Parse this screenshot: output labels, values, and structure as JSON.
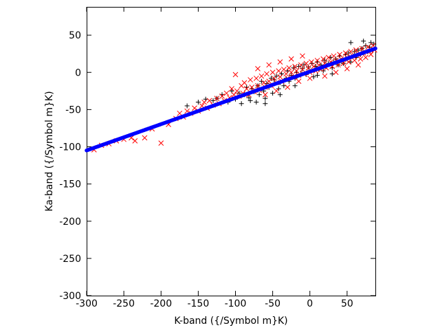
{
  "chart_data": {
    "type": "scatter",
    "title": "",
    "xlabel": "K-band ({/Symbol m}K)",
    "ylabel": "Ka-band ({/Symbol m}K)",
    "xlim": [
      -300,
      88
    ],
    "ylim": [
      -300,
      88
    ],
    "xticks": [
      -300,
      -250,
      -200,
      -150,
      -100,
      -50,
      0,
      50
    ],
    "yticks": [
      -300,
      -250,
      -200,
      -150,
      -100,
      -50,
      0,
      50
    ],
    "grid": false,
    "legend": "none",
    "series": [
      {
        "marker": "plus",
        "color": "#000000",
        "points": [
          [
            -165,
            -45
          ],
          [
            -150,
            -40
          ],
          [
            -140,
            -36
          ],
          [
            -130,
            -38
          ],
          [
            -125,
            -35
          ],
          [
            -118,
            -30
          ],
          [
            -110,
            -40
          ],
          [
            -105,
            -25
          ],
          [
            -100,
            -36
          ],
          [
            -95,
            -28
          ],
          [
            -92,
            -42
          ],
          [
            -88,
            -30
          ],
          [
            -85,
            -20
          ],
          [
            -82,
            -34
          ],
          [
            -80,
            -38
          ],
          [
            -78,
            -22
          ],
          [
            -75,
            -26
          ],
          [
            -72,
            -40
          ],
          [
            -70,
            -18
          ],
          [
            -68,
            -30
          ],
          [
            -65,
            -12
          ],
          [
            -62,
            -25
          ],
          [
            -60,
            -35
          ],
          [
            -58,
            -15
          ],
          [
            -55,
            -20
          ],
          [
            -52,
            -8
          ],
          [
            -50,
            -28
          ],
          [
            -48,
            -10
          ],
          [
            -45,
            -5
          ],
          [
            -42,
            -22
          ],
          [
            -40,
            -14
          ],
          [
            -38,
            -2
          ],
          [
            -35,
            -18
          ],
          [
            -32,
            -8
          ],
          [
            -30,
            2
          ],
          [
            -28,
            -12
          ],
          [
            -25,
            -4
          ],
          [
            -22,
            6
          ],
          [
            -20,
            -8
          ],
          [
            -18,
            0
          ],
          [
            -15,
            8
          ],
          [
            -12,
            -2
          ],
          [
            -10,
            5
          ],
          [
            -8,
            10
          ],
          [
            -5,
            -3
          ],
          [
            -2,
            7
          ],
          [
            0,
            2
          ],
          [
            3,
            12
          ],
          [
            5,
            -6
          ],
          [
            8,
            8
          ],
          [
            10,
            14
          ],
          [
            12,
            4
          ],
          [
            15,
            10
          ],
          [
            18,
            2
          ],
          [
            20,
            16
          ],
          [
            22,
            8
          ],
          [
            25,
            12
          ],
          [
            28,
            20
          ],
          [
            30,
            6
          ],
          [
            32,
            14
          ],
          [
            35,
            18
          ],
          [
            38,
            10
          ],
          [
            40,
            22
          ],
          [
            42,
            16
          ],
          [
            45,
            12
          ],
          [
            48,
            24
          ],
          [
            50,
            18
          ],
          [
            52,
            26
          ],
          [
            55,
            14
          ],
          [
            58,
            22
          ],
          [
            60,
            28
          ],
          [
            62,
            20
          ],
          [
            65,
            30
          ],
          [
            68,
            24
          ],
          [
            70,
            32
          ],
          [
            72,
            26
          ],
          [
            75,
            36
          ],
          [
            78,
            28
          ],
          [
            80,
            34
          ],
          [
            82,
            40
          ],
          [
            84,
            30
          ],
          [
            86,
            38
          ],
          [
            55,
            40
          ],
          [
            72,
            42
          ],
          [
            -60,
            -42
          ],
          [
            -40,
            -30
          ],
          [
            -20,
            -18
          ],
          [
            10,
            -4
          ],
          [
            30,
            -2
          ]
        ]
      },
      {
        "marker": "x",
        "color": "#ff0000",
        "points": [
          [
            -290,
            -104
          ],
          [
            -280,
            -98
          ],
          [
            -270,
            -96
          ],
          [
            -260,
            -92
          ],
          [
            -250,
            -90
          ],
          [
            -240,
            -88
          ],
          [
            -235,
            -92
          ],
          [
            -222,
            -88
          ],
          [
            -212,
            -76
          ],
          [
            -200,
            -95
          ],
          [
            -190,
            -70
          ],
          [
            -180,
            -62
          ],
          [
            -175,
            -55
          ],
          [
            -170,
            -60
          ],
          [
            -165,
            -52
          ],
          [
            -160,
            -55
          ],
          [
            -155,
            -48
          ],
          [
            -150,
            -52
          ],
          [
            -145,
            -45
          ],
          [
            -142,
            -40
          ],
          [
            -138,
            -48
          ],
          [
            -135,
            -38
          ],
          [
            -130,
            -44
          ],
          [
            -125,
            -35
          ],
          [
            -122,
            -42
          ],
          [
            -118,
            -32
          ],
          [
            -115,
            -38
          ],
          [
            -112,
            -28
          ],
          [
            -108,
            -34
          ],
          [
            -105,
            -22
          ],
          [
            -102,
            -30
          ],
          [
            -100,
            -3
          ],
          [
            -98,
            -25
          ],
          [
            -95,
            -32
          ],
          [
            -92,
            -18
          ],
          [
            -90,
            -28
          ],
          [
            -88,
            -14
          ],
          [
            -85,
            -22
          ],
          [
            -82,
            -30
          ],
          [
            -80,
            -10
          ],
          [
            -78,
            -20
          ],
          [
            -75,
            -26
          ],
          [
            -72,
            -8
          ],
          [
            -70,
            -18
          ],
          [
            -68,
            -24
          ],
          [
            -65,
            -5
          ],
          [
            -62,
            -14
          ],
          [
            -60,
            -20
          ],
          [
            -58,
            -2
          ],
          [
            -55,
            -12
          ],
          [
            -52,
            -18
          ],
          [
            -50,
            0
          ],
          [
            -48,
            -8
          ],
          [
            -45,
            -14
          ],
          [
            -42,
            2
          ],
          [
            -40,
            -6
          ],
          [
            -38,
            -12
          ],
          [
            -35,
            4
          ],
          [
            -32,
            -2
          ],
          [
            -30,
            -8
          ],
          [
            -28,
            6
          ],
          [
            -25,
            0
          ],
          [
            -22,
            -6
          ],
          [
            -20,
            8
          ],
          [
            -18,
            2
          ],
          [
            -15,
            -4
          ],
          [
            -12,
            10
          ],
          [
            -10,
            4
          ],
          [
            -8,
            -2
          ],
          [
            -5,
            12
          ],
          [
            -2,
            6
          ],
          [
            0,
            0
          ],
          [
            2,
            14
          ],
          [
            5,
            8
          ],
          [
            8,
            2
          ],
          [
            10,
            16
          ],
          [
            12,
            10
          ],
          [
            15,
            4
          ],
          [
            18,
            18
          ],
          [
            20,
            12
          ],
          [
            22,
            6
          ],
          [
            25,
            20
          ],
          [
            28,
            14
          ],
          [
            30,
            8
          ],
          [
            32,
            22
          ],
          [
            35,
            16
          ],
          [
            38,
            10
          ],
          [
            40,
            24
          ],
          [
            42,
            18
          ],
          [
            45,
            12
          ],
          [
            48,
            26
          ],
          [
            50,
            20
          ],
          [
            52,
            14
          ],
          [
            55,
            28
          ],
          [
            58,
            22
          ],
          [
            60,
            16
          ],
          [
            62,
            30
          ],
          [
            65,
            24
          ],
          [
            68,
            18
          ],
          [
            70,
            32
          ],
          [
            72,
            26
          ],
          [
            75,
            20
          ],
          [
            78,
            34
          ],
          [
            80,
            28
          ],
          [
            82,
            24
          ],
          [
            85,
            36
          ],
          [
            87,
            30
          ],
          [
            -60,
            -30
          ],
          [
            -45,
            -25
          ],
          [
            -30,
            -20
          ],
          [
            -15,
            -12
          ],
          [
            0,
            -8
          ],
          [
            20,
            -5
          ],
          [
            35,
            0
          ],
          [
            50,
            5
          ],
          [
            65,
            10
          ],
          [
            -70,
            5
          ],
          [
            -55,
            10
          ],
          [
            -40,
            14
          ],
          [
            -25,
            18
          ],
          [
            -10,
            22
          ]
        ]
      },
      {
        "marker": "circle",
        "color": "#0000ff",
        "fit": {
          "x_start": -300,
          "x_end": 88,
          "slope": 0.353,
          "intercept": 1,
          "count": 260
        }
      }
    ]
  }
}
